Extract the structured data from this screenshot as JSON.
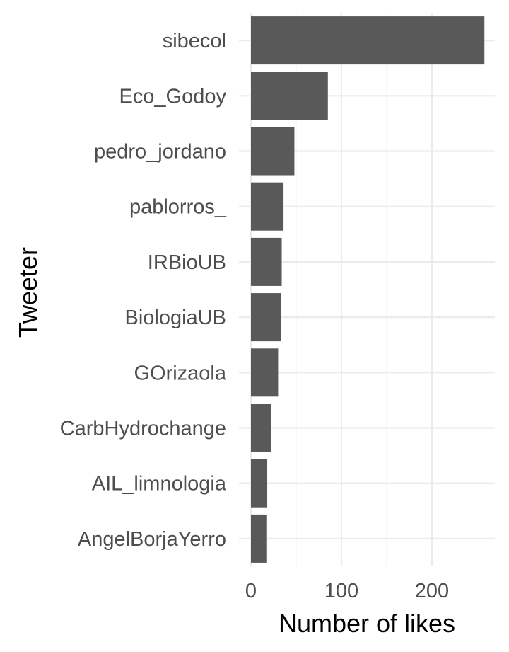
{
  "chart_data": {
    "type": "bar",
    "orientation": "horizontal",
    "categories": [
      "sibecol",
      "Eco_Godoy",
      "pedro_jordano",
      "pablorros_",
      "IRBioUB",
      "BiologiaUB",
      "GOrizaola",
      "CarbHydrochange",
      "AIL_limnologia",
      "AngelBorjaYerro"
    ],
    "values": [
      258,
      85,
      48,
      36,
      34,
      33,
      30,
      22,
      18,
      17
    ],
    "xlabel": "Number of likes",
    "ylabel": "Tweeter",
    "xlim": [
      0,
      270
    ],
    "xticks": [
      0,
      100,
      200
    ],
    "xtick_labels": [
      "0",
      "100",
      "200"
    ],
    "bar_color": "#595959",
    "grid": true,
    "legend": "none"
  }
}
